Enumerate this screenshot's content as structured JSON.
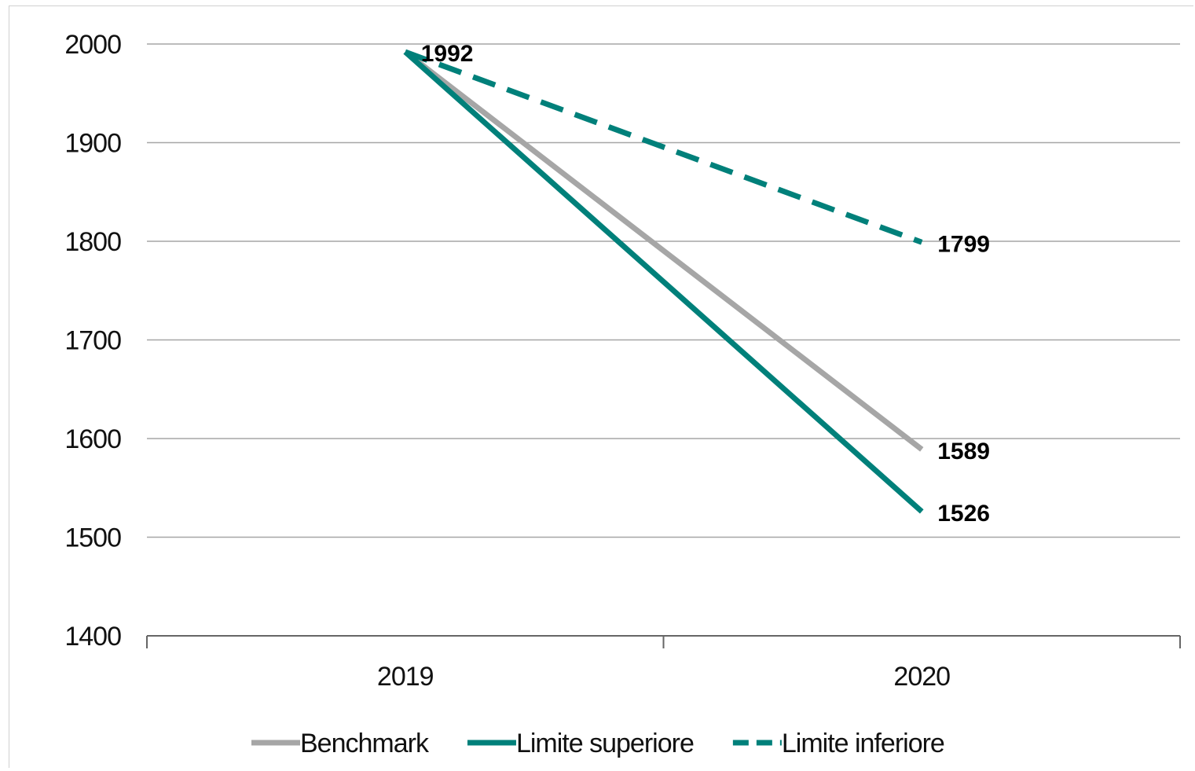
{
  "chart_data": {
    "type": "line",
    "categories": [
      "2019",
      "2020"
    ],
    "ylim": [
      1400,
      2000
    ],
    "yticks": [
      "1400",
      "1500",
      "1600",
      "1700",
      "1800",
      "1900",
      "2000"
    ],
    "grid": true,
    "legend_position": "bottom",
    "series": [
      {
        "name": "Benchmark",
        "values": [
          1992,
          1589
        ],
        "color": "#a6a6a6",
        "dash": false,
        "labels": [
          null,
          "1589"
        ]
      },
      {
        "name": "Limite superiore",
        "values": [
          1992,
          1526
        ],
        "color": "#00807a",
        "dash": false,
        "labels": [
          null,
          "1526"
        ]
      },
      {
        "name": "Limite inferiore",
        "values": [
          1992,
          1799
        ],
        "color": "#00807a",
        "dash": true,
        "labels": [
          "1992",
          "1799"
        ]
      }
    ]
  }
}
